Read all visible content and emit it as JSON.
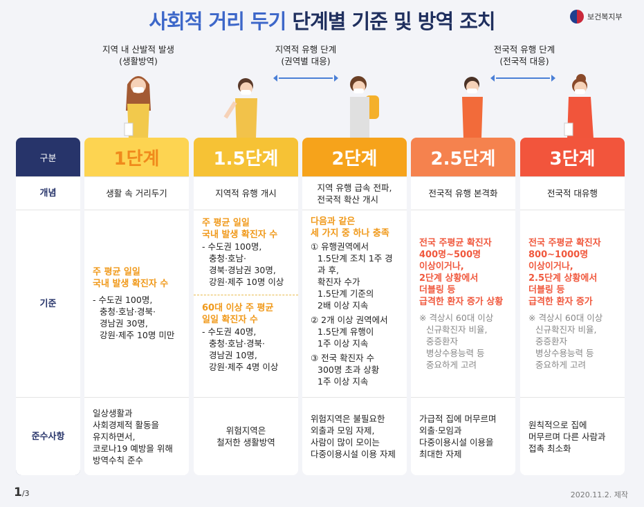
{
  "title": {
    "part1": "사회적 거리 두기",
    "part2": " 단계별 기준 및 방역 조치"
  },
  "logo": {
    "text": "보건복지부"
  },
  "stages": [
    {
      "line1": "지역 내 산발적 발생",
      "line2": "(생활방역)"
    },
    {
      "line1": "지역적 유행 단계",
      "line2": "(권역별 대응)"
    },
    {
      "line1": "전국적 유행 단계",
      "line2": "(전국적 대응)"
    }
  ],
  "row_labels": {
    "head": "구분",
    "concept": "개념",
    "criteria": "기준",
    "compliance": "준수사항"
  },
  "colors": {
    "navy": "#27346a",
    "level1": "#fdd451",
    "level15": "#f6c235",
    "level2": "#f6a31b",
    "level25": "#f5824e",
    "level3": "#f2553c"
  },
  "levels": [
    {
      "name": "1단계",
      "concept": "생활 속 거리두기",
      "criteria": {
        "highlight": [
          "주 평균 일일",
          "국내 발생 확진자 수"
        ],
        "details": [
          "- 수도권 100명,",
          "충청·호남·경북·",
          "경남권 30명,",
          "강원·제주 10명 미만"
        ]
      },
      "compliance": [
        "일상생활과",
        "사회경제적 활동을",
        "유지하면서,",
        "코로나19 예방을 위해",
        "방역수칙 준수"
      ]
    },
    {
      "name": "1.5단계",
      "concept": "지역적 유행 개시",
      "criteria": {
        "highlight": [
          "주 평균 일일",
          "국내 발생 확진자 수"
        ],
        "details": [
          "- 수도권 100명,",
          "충청·호남·",
          "경북·경남권 30명,",
          "강원·제주 10명 이상"
        ],
        "highlight2": [
          "60대 이상 주 평균",
          "일일 확진자 수"
        ],
        "details2": [
          "- 수도권 40명,",
          "충청·호남·경북·",
          "경남권 10명,",
          "강원·제주 4명 이상"
        ]
      },
      "compliance": [
        "위험지역은",
        "철저한 생활방역"
      ]
    },
    {
      "name": "2단계",
      "concept": [
        "지역 유행 급속 전파,",
        "전국적 확산 개시"
      ],
      "criteria": {
        "highlight": [
          "다음과 같은",
          "세 가지 중 하나 충족"
        ],
        "items": [
          [
            "① 유행권역에서",
            "1.5단계 조치 1주 경과 후,",
            "확진자 수가",
            "1.5단계 기준의",
            "2배 이상 지속"
          ],
          [
            "② 2개 이상 권역에서",
            "1.5단계 유행이",
            "1주 이상 지속"
          ],
          [
            "③ 전국 확진자 수",
            "300명 초과 상황",
            "1주 이상 지속"
          ]
        ]
      },
      "compliance": [
        "위험지역은 불필요한",
        "외출과 모임 자제,",
        "사람이 많이 모이는",
        "다중이용시설 이용 자제"
      ]
    },
    {
      "name": "2.5단계",
      "concept": "전국적 유행 본격화",
      "criteria": {
        "highlight": [
          "전국 주평균 확진자",
          "400명~500명",
          "이상이거나,",
          "2단계 상황에서",
          "더블링 등",
          "급격한 환자 증가 상황"
        ],
        "note": [
          "※ 격상시 60대 이상",
          "신규확진자 비율,",
          "중증환자",
          "병상수용능력 등",
          "중요하게 고려"
        ]
      },
      "compliance": [
        "가급적 집에 머무르며",
        "외출·모임과",
        "다중이용시설 이용을",
        "최대한 자제"
      ]
    },
    {
      "name": "3단계",
      "concept": "전국적 대유행",
      "criteria": {
        "highlight": [
          "전국 주평균 확진자",
          "800~1000명",
          "이상이거나,",
          "2.5단계 상황에서",
          "더블링 등",
          "급격한 환자 증가"
        ],
        "note": [
          "※ 격상시 60대 이상",
          "신규확진자 비율,",
          "중증환자",
          "병상수용능력 등",
          "중요하게 고려"
        ]
      },
      "compliance": [
        "원칙적으로 집에",
        "머무르며 다른 사람과",
        "접촉 최소화"
      ]
    }
  ],
  "footer": {
    "page": "1",
    "total": "/3",
    "date": "2020.11.2. 제작"
  }
}
